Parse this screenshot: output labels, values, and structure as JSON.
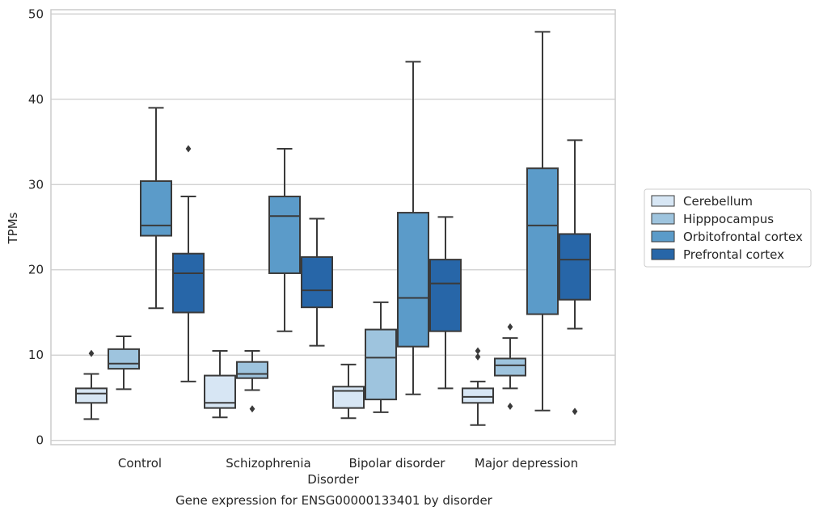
{
  "caption": "Gene expression for ENSG00000133401 by disorder",
  "chart_data": {
    "type": "box",
    "xlabel": "Disorder",
    "ylabel": "TPMs",
    "ylim": [
      -0.5,
      50.5
    ],
    "yticks": [
      0,
      10,
      20,
      30,
      40,
      50
    ],
    "grid": "horizontal",
    "legend_position": "right",
    "categories": [
      "Control",
      "Schizophrenia",
      "Bipolar disorder",
      "Major depression"
    ],
    "series": [
      {
        "name": "Cerebellum",
        "color": "#d7e6f4",
        "boxes": [
          {
            "whisker_low": 2.5,
            "q1": 4.4,
            "median": 5.5,
            "q3": 6.1,
            "whisker_high": 7.8,
            "outliers": [
              10.2
            ]
          },
          {
            "whisker_low": 2.7,
            "q1": 3.8,
            "median": 4.4,
            "q3": 7.6,
            "whisker_high": 10.5,
            "outliers": []
          },
          {
            "whisker_low": 2.6,
            "q1": 3.8,
            "median": 5.8,
            "q3": 6.3,
            "whisker_high": 8.9,
            "outliers": []
          },
          {
            "whisker_low": 1.8,
            "q1": 4.4,
            "median": 5.1,
            "q3": 6.1,
            "whisker_high": 6.9,
            "outliers": [
              9.8,
              10.5
            ]
          }
        ]
      },
      {
        "name": "Hipppocampus",
        "color": "#9ec4de",
        "boxes": [
          {
            "whisker_low": 6.0,
            "q1": 8.4,
            "median": 9.0,
            "q3": 10.7,
            "whisker_high": 12.2,
            "outliers": []
          },
          {
            "whisker_low": 5.9,
            "q1": 7.3,
            "median": 7.8,
            "q3": 9.2,
            "whisker_high": 10.5,
            "outliers": [
              3.7
            ]
          },
          {
            "whisker_low": 3.3,
            "q1": 4.8,
            "median": 9.7,
            "q3": 13.0,
            "whisker_high": 16.2,
            "outliers": []
          },
          {
            "whisker_low": 6.1,
            "q1": 7.6,
            "median": 8.8,
            "q3": 9.6,
            "whisker_high": 12.0,
            "outliers": [
              13.3,
              4.0
            ]
          }
        ]
      },
      {
        "name": "Orbitofrontal cortex",
        "color": "#5b9bc9",
        "boxes": [
          {
            "whisker_low": 15.5,
            "q1": 24.0,
            "median": 25.2,
            "q3": 30.4,
            "whisker_high": 39.0,
            "outliers": []
          },
          {
            "whisker_low": 12.8,
            "q1": 19.6,
            "median": 26.3,
            "q3": 28.6,
            "whisker_high": 34.2,
            "outliers": []
          },
          {
            "whisker_low": 5.4,
            "q1": 11.0,
            "median": 16.7,
            "q3": 26.7,
            "whisker_high": 44.4,
            "outliers": []
          },
          {
            "whisker_low": 3.5,
            "q1": 14.8,
            "median": 25.2,
            "q3": 31.9,
            "whisker_high": 47.9,
            "outliers": []
          }
        ]
      },
      {
        "name": "Prefrontal cortex",
        "color": "#2766a8",
        "boxes": [
          {
            "whisker_low": 6.9,
            "q1": 15.0,
            "median": 19.6,
            "q3": 21.9,
            "whisker_high": 28.6,
            "outliers": [
              34.2
            ]
          },
          {
            "whisker_low": 11.1,
            "q1": 15.6,
            "median": 17.6,
            "q3": 21.5,
            "whisker_high": 26.0,
            "outliers": []
          },
          {
            "whisker_low": 6.1,
            "q1": 12.8,
            "median": 18.4,
            "q3": 21.2,
            "whisker_high": 26.2,
            "outliers": []
          },
          {
            "whisker_low": 13.1,
            "q1": 16.5,
            "median": 21.2,
            "q3": 24.2,
            "whisker_high": 35.2,
            "outliers": [
              3.4
            ]
          }
        ]
      }
    ]
  }
}
